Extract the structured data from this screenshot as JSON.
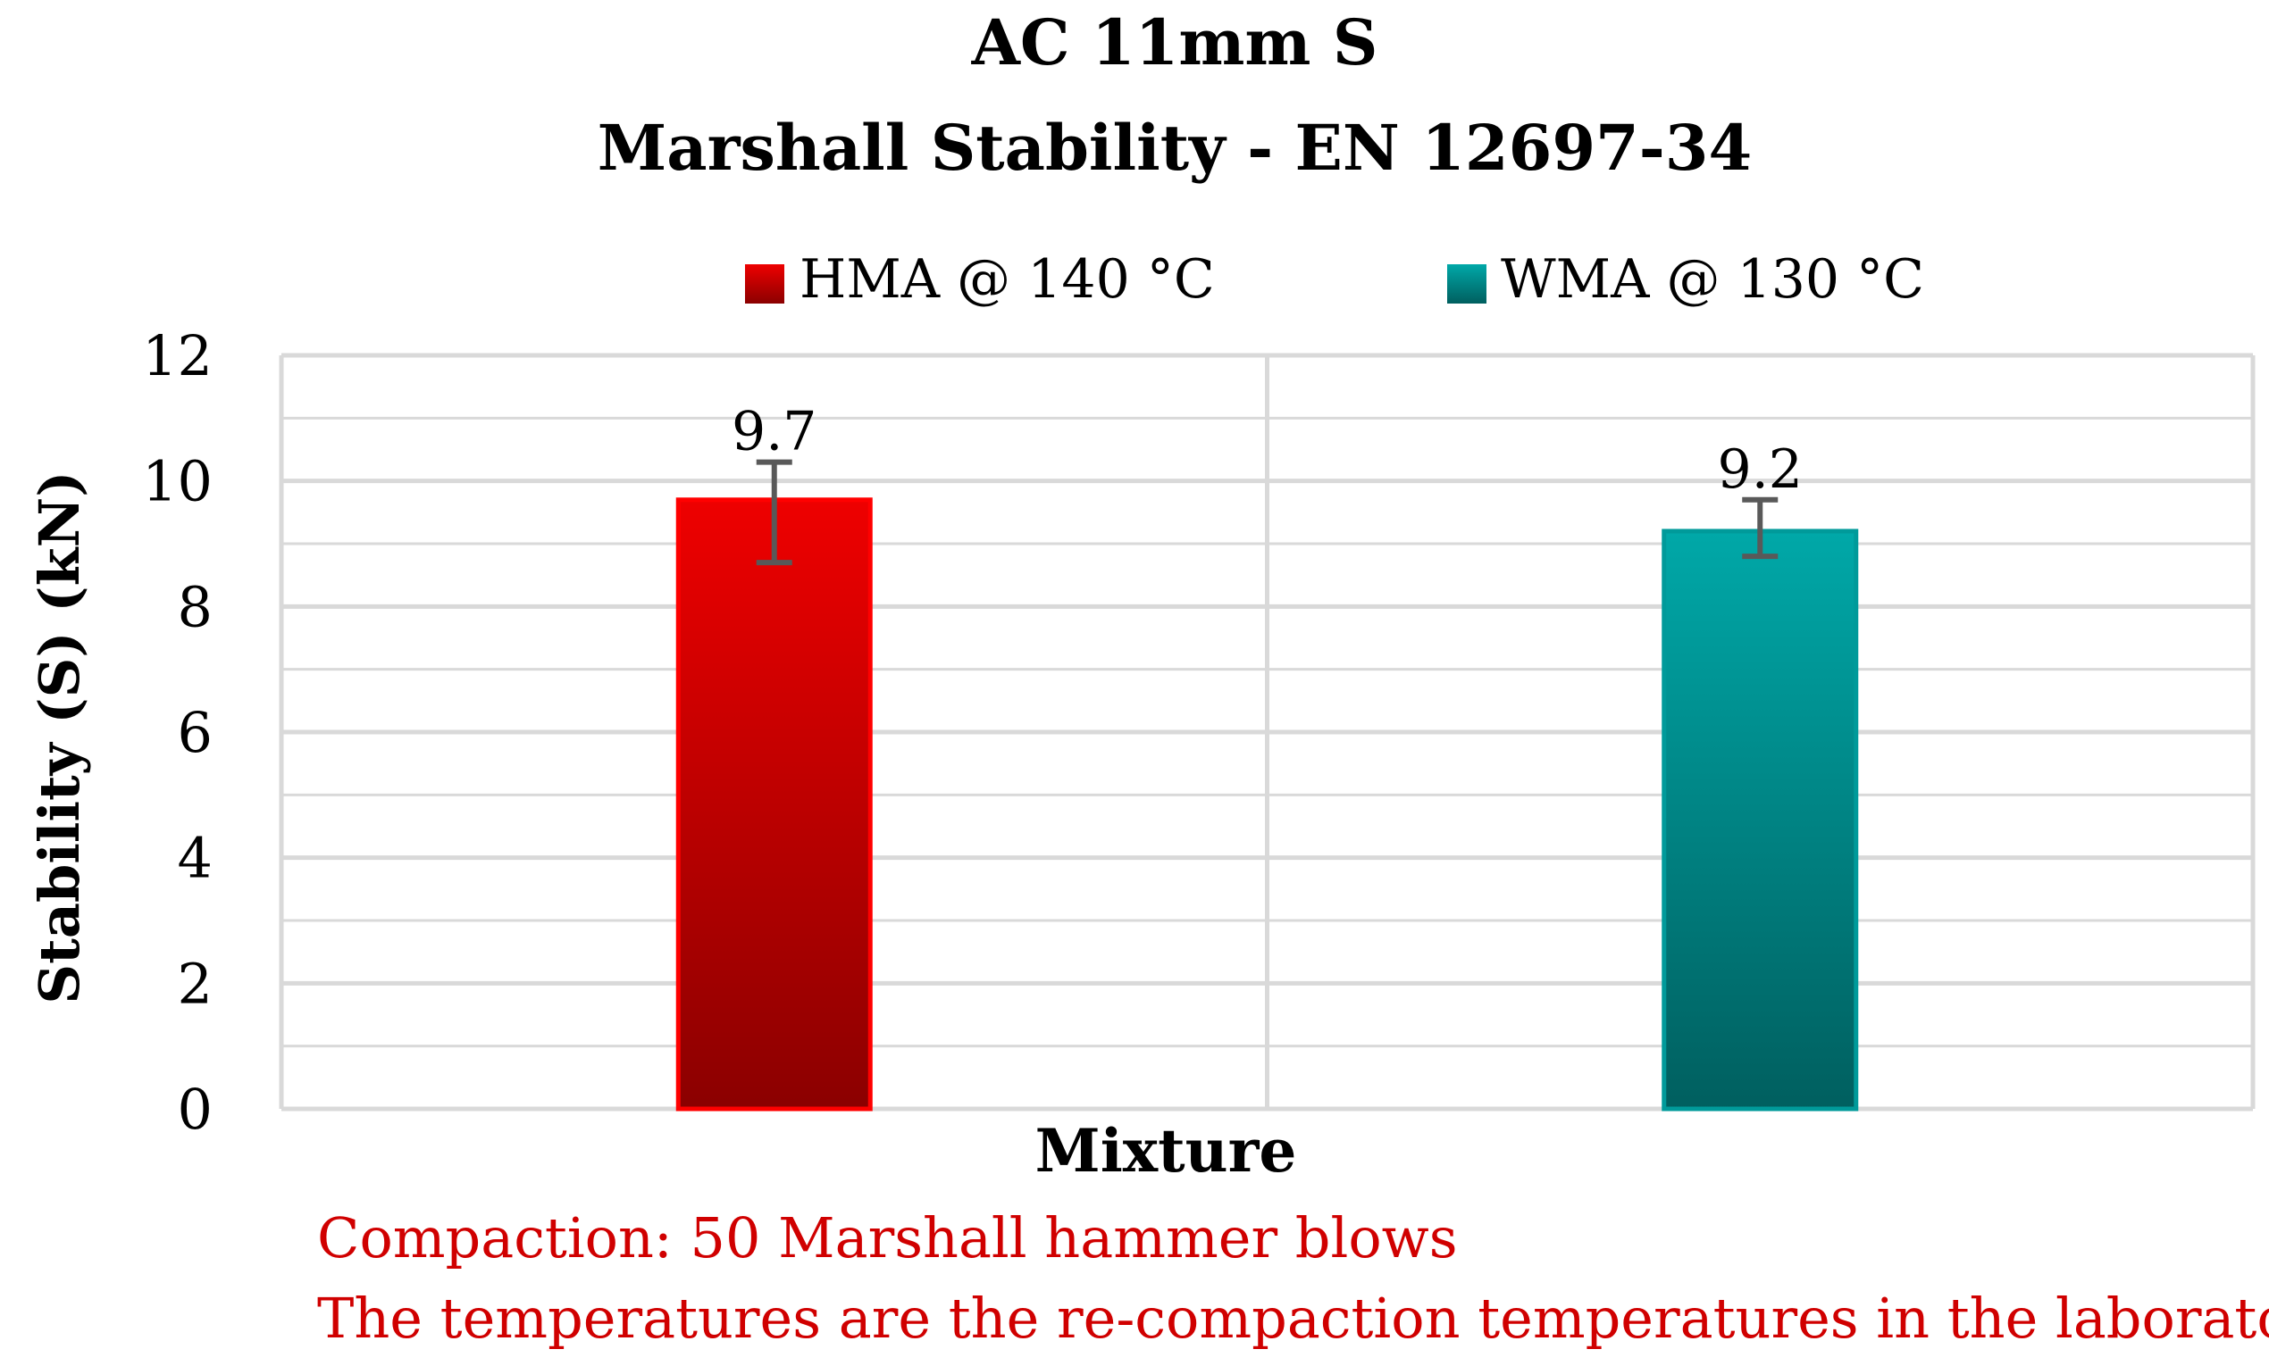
{
  "chart_data": {
    "type": "bar",
    "title": "AC 11mm S",
    "subtitle": "Marshall Stability - EN 12697-34",
    "xlabel": "Mixture",
    "ylabel": "Stability (S) (kN)",
    "ylim": [
      0,
      12
    ],
    "ytick_step": 2,
    "minor_gridline_step": 1,
    "grid": true,
    "legend_position": "top",
    "series": [
      {
        "name": "HMA @ 140 °C",
        "value": 9.7,
        "value_label": "9.7",
        "error_low": 8.7,
        "error_high": 10.3,
        "color_top": "#ee0000",
        "color_bottom": "#8b0000",
        "border_color": "#ff0000"
      },
      {
        "name": "WMA @ 130 °C",
        "value": 9.2,
        "value_label": "9.2",
        "error_low": 8.8,
        "error_high": 9.7,
        "color_top": "#00a8a8",
        "color_bottom": "#005f5f",
        "border_color": "#009a9a"
      }
    ],
    "annotations": [
      "Compaction: 50  Marshall hammer blows",
      "The temperatures are the re-compaction temperatures in the laboratory"
    ],
    "annotation_color": "#d00000",
    "grid_color": "#d9d9d9",
    "errorbar_color": "#595959"
  }
}
